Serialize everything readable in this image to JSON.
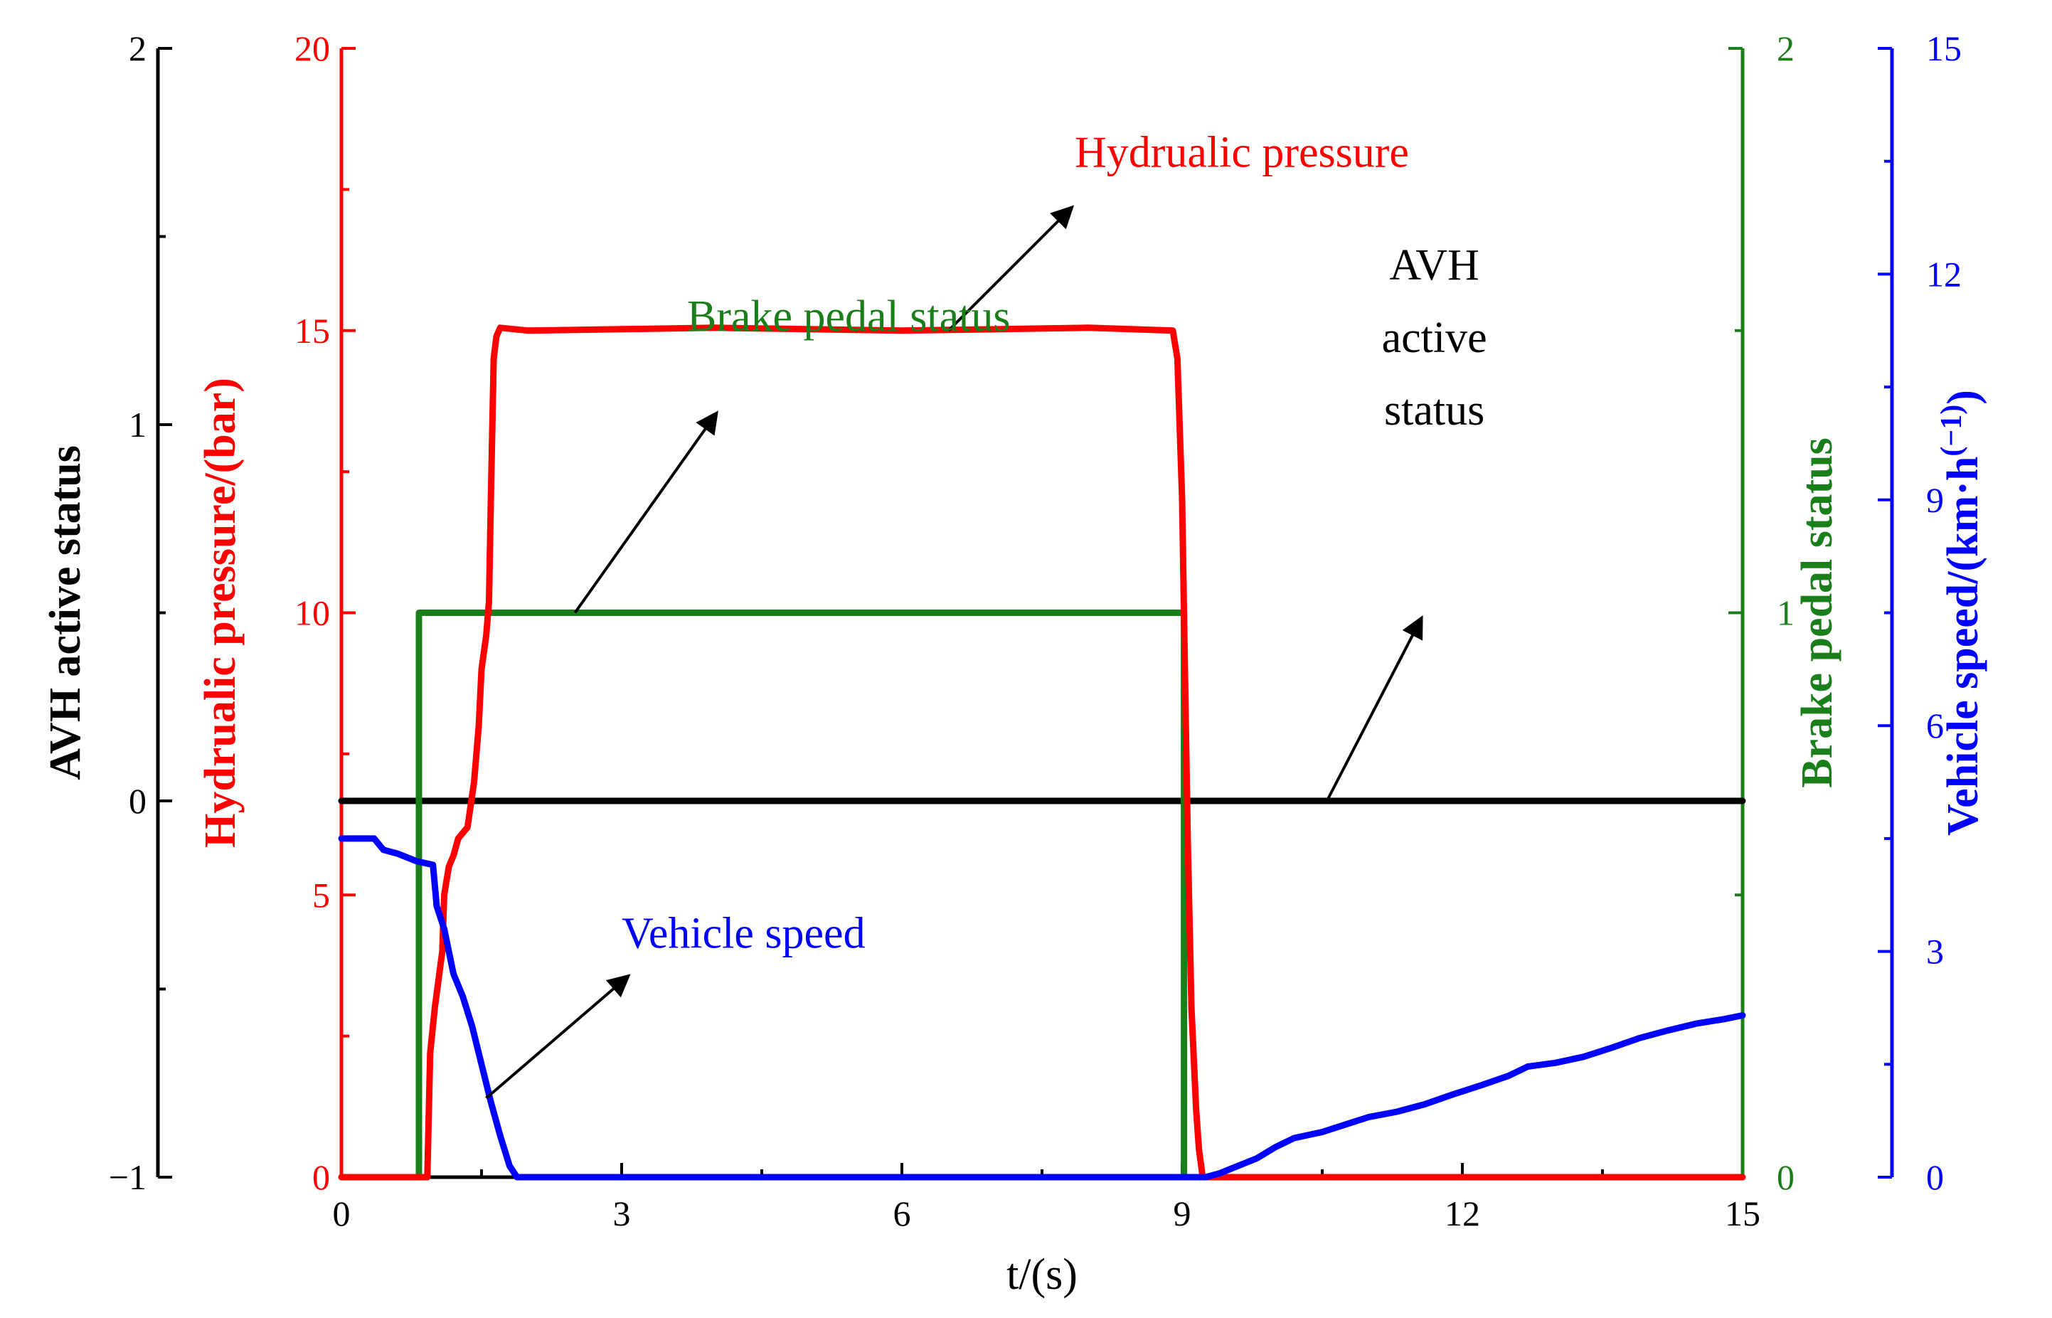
{
  "chart_data": {
    "type": "line",
    "x": {
      "label": "t/(s)",
      "range": [
        0,
        15
      ],
      "ticks": [
        "0",
        "3",
        "6",
        "9",
        "12",
        "15"
      ]
    },
    "y_axes": {
      "avh": {
        "label": "AVH active status",
        "range": [
          -1,
          2
        ],
        "ticks": [
          "−1",
          "0",
          "1",
          "2"
        ],
        "color": "#000000"
      },
      "pressure": {
        "label": "Hydrualic pressure/(bar)",
        "range": [
          0,
          20
        ],
        "ticks": [
          "0",
          "5",
          "10",
          "15",
          "20"
        ],
        "color": "#ff0000"
      },
      "pedal": {
        "label": "Brake pedal status",
        "range": [
          0,
          2
        ],
        "ticks": [
          "0",
          "1",
          "2"
        ],
        "color": "#1a7f1a"
      },
      "speed": {
        "label_main": "Vehicle speed/(km·h",
        "label_sup": "(−1)",
        "label_end": ")",
        "range": [
          0,
          15
        ],
        "ticks": [
          "0",
          "3",
          "6",
          "9",
          "12",
          "15"
        ],
        "color": "#0000ff"
      }
    },
    "series": [
      {
        "name": "Hydrualic pressure",
        "axis": "pressure",
        "color": "#ff0000",
        "points": [
          [
            0,
            0
          ],
          [
            0.92,
            0
          ],
          [
            0.95,
            2.2
          ],
          [
            1.0,
            3.0
          ],
          [
            1.08,
            4.0
          ],
          [
            1.1,
            5.0
          ],
          [
            1.15,
            5.5
          ],
          [
            1.2,
            5.7
          ],
          [
            1.25,
            6.0
          ],
          [
            1.35,
            6.2
          ],
          [
            1.42,
            7.0
          ],
          [
            1.47,
            8.0
          ],
          [
            1.5,
            9.0
          ],
          [
            1.55,
            9.6
          ],
          [
            1.58,
            10.2
          ],
          [
            1.6,
            12.0
          ],
          [
            1.63,
            14.5
          ],
          [
            1.66,
            14.9
          ],
          [
            1.7,
            15.05
          ],
          [
            2.0,
            15.0
          ],
          [
            4.0,
            15.05
          ],
          [
            6.0,
            15.0
          ],
          [
            8.0,
            15.05
          ],
          [
            8.9,
            15.0
          ],
          [
            8.95,
            14.5
          ],
          [
            9.0,
            12.0
          ],
          [
            9.03,
            9.0
          ],
          [
            9.06,
            6.0
          ],
          [
            9.1,
            3.0
          ],
          [
            9.15,
            1.2
          ],
          [
            9.18,
            0.5
          ],
          [
            9.22,
            0
          ],
          [
            15,
            0
          ]
        ]
      },
      {
        "name": "Brake pedal status",
        "axis": "pedal",
        "color": "#1a7f1a",
        "points": [
          [
            0,
            0
          ],
          [
            0.83,
            0
          ],
          [
            0.83,
            1
          ],
          [
            9.02,
            1
          ],
          [
            9.02,
            0
          ],
          [
            15,
            0
          ]
        ]
      },
      {
        "name": "AVH active status",
        "axis": "avh",
        "color": "#000000",
        "points": [
          [
            0,
            0
          ],
          [
            15,
            0
          ]
        ]
      },
      {
        "name": "Vehicle speed",
        "axis": "speed",
        "color": "#0000ff",
        "points": [
          [
            0,
            4.5
          ],
          [
            0.35,
            4.5
          ],
          [
            0.45,
            4.35
          ],
          [
            0.6,
            4.3
          ],
          [
            0.8,
            4.2
          ],
          [
            0.98,
            4.15
          ],
          [
            1.02,
            3.6
          ],
          [
            1.1,
            3.3
          ],
          [
            1.2,
            2.7
          ],
          [
            1.3,
            2.4
          ],
          [
            1.4,
            2.0
          ],
          [
            1.5,
            1.5
          ],
          [
            1.6,
            1.0
          ],
          [
            1.7,
            0.55
          ],
          [
            1.8,
            0.15
          ],
          [
            1.88,
            0
          ],
          [
            9.25,
            0
          ],
          [
            9.4,
            0.05
          ],
          [
            9.6,
            0.15
          ],
          [
            9.8,
            0.25
          ],
          [
            10.0,
            0.4
          ],
          [
            10.2,
            0.52
          ],
          [
            10.5,
            0.6
          ],
          [
            10.8,
            0.72
          ],
          [
            11.0,
            0.8
          ],
          [
            11.3,
            0.87
          ],
          [
            11.6,
            0.97
          ],
          [
            11.9,
            1.1
          ],
          [
            12.2,
            1.22
          ],
          [
            12.5,
            1.35
          ],
          [
            12.7,
            1.47
          ],
          [
            13.0,
            1.52
          ],
          [
            13.3,
            1.6
          ],
          [
            13.6,
            1.72
          ],
          [
            13.9,
            1.85
          ],
          [
            14.2,
            1.95
          ],
          [
            14.5,
            2.04
          ],
          [
            14.8,
            2.1
          ],
          [
            15.0,
            2.15
          ]
        ]
      }
    ],
    "annotations": [
      {
        "text_lines": [
          "Hydrualic pressure"
        ],
        "color": "#ff0000",
        "arrow_from": [
          6.5,
          15.0
        ],
        "arrow_to": [
          7.8,
          17.15
        ],
        "arrow_axis": "pressure",
        "text_at": [
          7.85,
          17.9
        ],
        "anchor": "start"
      },
      {
        "text_lines": [
          "Brake pedal status"
        ],
        "color": "#1a7f1a",
        "arrow_from": [
          2.5,
          1.0
        ],
        "arrow_to": [
          4.0,
          1.35
        ],
        "arrow_axis": "pedal",
        "text_at": [
          3.7,
          1.5
        ],
        "anchor": "start"
      },
      {
        "text_lines": [
          "AVH",
          "active",
          "status"
        ],
        "color": "#000000",
        "arrow_from": [
          10.55,
          0.0
        ],
        "arrow_to": [
          11.55,
          0.48
        ],
        "arrow_axis": "avh",
        "text_at": [
          11.7,
          1.0
        ],
        "anchor": "middle"
      },
      {
        "text_lines": [
          "Vehicle speed"
        ],
        "color": "#0000ff",
        "arrow_from": [
          1.55,
          1.05
        ],
        "arrow_to": [
          3.05,
          2.65
        ],
        "arrow_axis": "speed",
        "text_at": [
          3.0,
          3.05
        ],
        "anchor": "start"
      }
    ]
  }
}
